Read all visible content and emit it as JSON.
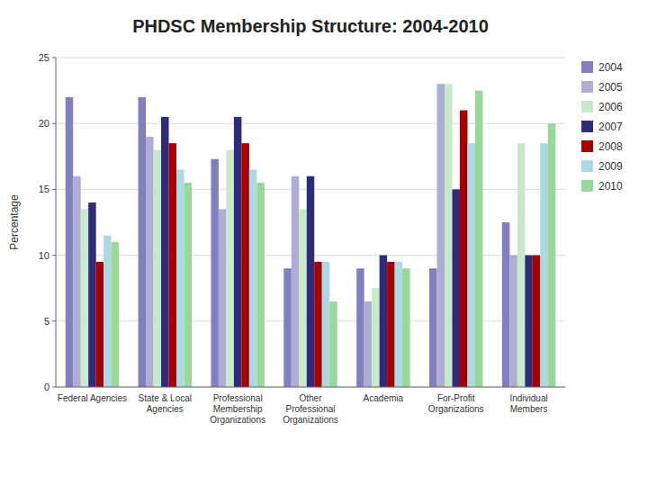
{
  "chart_data": {
    "type": "bar",
    "title": "PHDSC Membership Structure: 2004-2010",
    "ylabel": "Percentage",
    "categories": [
      "Federal Agencies",
      "State & Local\nAgencies",
      "Professional\nMembership\nOrganizations",
      "Other\nProfessional\nOrganizations",
      "Academia",
      "For-Profit\nOrganizations",
      "Individual\nMembers"
    ],
    "series": [
      {
        "name": "2004",
        "color": "#8080C0",
        "values": [
          22.0,
          22.0,
          17.3,
          9.0,
          9.0,
          9.0,
          12.5
        ]
      },
      {
        "name": "2005",
        "color": "#ADADD6",
        "values": [
          16.0,
          19.0,
          13.5,
          16.0,
          6.5,
          23.0,
          10.0
        ]
      },
      {
        "name": "2006",
        "color": "#C8EAC8",
        "values": [
          13.5,
          18.0,
          18.0,
          13.5,
          7.5,
          23.0,
          18.5
        ]
      },
      {
        "name": "2007",
        "color": "#2C2C7A",
        "values": [
          14.0,
          20.5,
          20.5,
          16.0,
          10.0,
          15.0,
          10.0
        ]
      },
      {
        "name": "2008",
        "color": "#A80000",
        "values": [
          9.5,
          18.5,
          18.5,
          9.5,
          9.5,
          21.0,
          10.0
        ]
      },
      {
        "name": "2009",
        "color": "#ADD8E6",
        "values": [
          11.5,
          16.5,
          16.5,
          9.5,
          9.5,
          18.5,
          18.5
        ]
      },
      {
        "name": "2010",
        "color": "#98D898",
        "values": [
          11.0,
          15.5,
          15.5,
          6.5,
          9.0,
          22.5,
          20.0
        ]
      }
    ],
    "ylim": [
      0,
      25
    ],
    "yticks": [
      0,
      5,
      10,
      15,
      20,
      25
    ],
    "grid": true,
    "legend": "right"
  }
}
